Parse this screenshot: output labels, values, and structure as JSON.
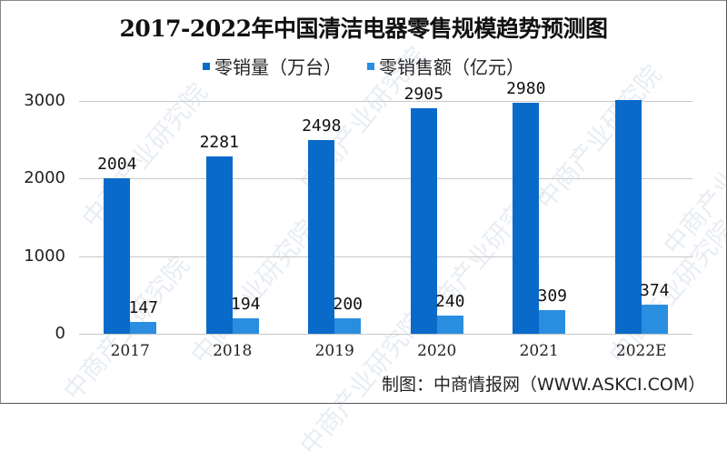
{
  "title": "2017-2022年中国清洁电器零售规模趋势预测图",
  "legend": [
    {
      "label": "零销量（万台）",
      "color": "#0a6ac9"
    },
    {
      "label": "零销售额（亿元）",
      "color": "#2a8ee0"
    }
  ],
  "source": "制图：中商情报网（WWW.ASKCI.COM）",
  "watermark": "中商产业研究院",
  "chart_data": {
    "type": "bar",
    "title": "2017-2022年中国清洁电器零售规模趋势预测图",
    "categories": [
      "2017",
      "2018",
      "2019",
      "2020",
      "2021",
      "2022E"
    ],
    "series": [
      {
        "name": "零销量（万台）",
        "values": [
          2004,
          2281,
          2498,
          2905,
          2980,
          3010
        ],
        "labels": [
          "2004",
          "2281",
          "2498",
          "2905",
          "2980",
          ""
        ],
        "color": "#0a6ac9"
      },
      {
        "name": "零销售额（亿元）",
        "values": [
          147,
          194,
          200,
          240,
          309,
          374
        ],
        "labels": [
          "147",
          "194",
          "200",
          "240",
          "309",
          "374"
        ],
        "color": "#2a8ee0"
      }
    ],
    "xlabel": "",
    "ylabel": "",
    "ylim": [
      0,
      3000
    ],
    "yticks": [
      "0",
      "1000",
      "2000",
      "3000"
    ],
    "grid": true,
    "legend_position": "top"
  }
}
